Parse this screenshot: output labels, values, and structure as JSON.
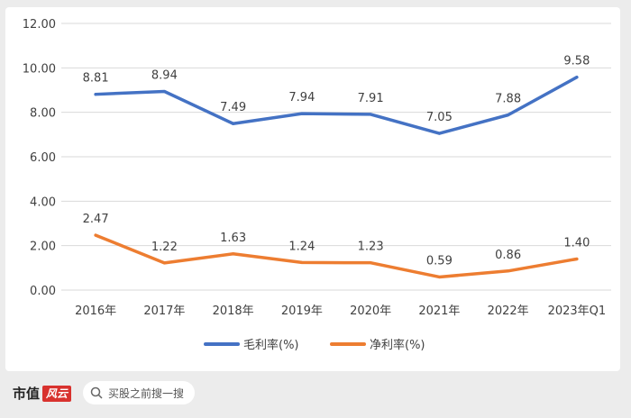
{
  "chart_data": {
    "type": "line",
    "categories": [
      "2016年",
      "2017年",
      "2018年",
      "2019年",
      "2020年",
      "2021年",
      "2022年",
      "2023年Q1"
    ],
    "series": [
      {
        "name": "毛利率(%)",
        "color": "#4472c4",
        "values": [
          8.81,
          8.94,
          7.49,
          7.94,
          7.91,
          7.05,
          7.88,
          9.58
        ],
        "labels": [
          "8.81",
          "8.94",
          "7.49",
          "7.94",
          "7.91",
          "7.05",
          "7.88",
          "9.58"
        ]
      },
      {
        "name": "净利率(%)",
        "color": "#ed7d31",
        "values": [
          2.47,
          1.22,
          1.63,
          1.24,
          1.23,
          0.59,
          0.86,
          1.4
        ],
        "labels": [
          "2.47",
          "1.22",
          "1.63",
          "1.24",
          "1.23",
          "0.59",
          "0.86",
          "1.40"
        ]
      }
    ],
    "ylim": [
      0,
      12
    ],
    "yticks": [
      "0.00",
      "2.00",
      "4.00",
      "6.00",
      "8.00",
      "10.00",
      "12.00"
    ],
    "legend_position": "bottom",
    "grid": true,
    "watermark": "市值风云"
  },
  "footer": {
    "brand": "市值",
    "brand_logo": "风云",
    "search_text": "买股之前搜一搜"
  }
}
